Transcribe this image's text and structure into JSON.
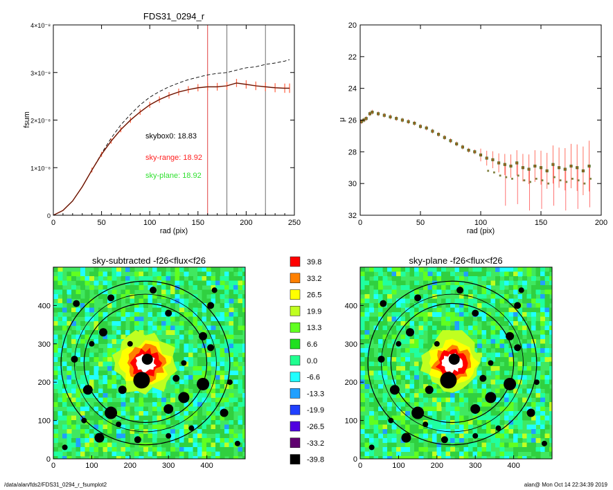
{
  "footer": {
    "path": "/data/alan/fds2/FDS31_0294_r_fsumplot2",
    "stamp": "alan@  Mon Oct 14 22:34:39 2019"
  },
  "colors": {
    "data_line": "#000000",
    "sky_range": "#ff0000",
    "sky_plane": "#00dd00",
    "error_bars": "#ff6040"
  },
  "chart_data": [
    {
      "type": "line",
      "title": "FDS31_0294_r",
      "xlabel": "rad (pix)",
      "ylabel": "fsum",
      "xlim": [
        0,
        250
      ],
      "ylim": [
        0,
        4e-08
      ],
      "xticks": [
        "0",
        "50",
        "100",
        "150",
        "200",
        "250"
      ],
      "yticks": [
        "0",
        "1×10⁻⁸",
        "2×10⁻⁸",
        "3×10⁻⁸",
        "4×10⁻⁸"
      ],
      "vlines": [
        {
          "x": 160,
          "color": "#e04040"
        },
        {
          "x": 180,
          "color": "#707070"
        },
        {
          "x": 220,
          "color": "#707070"
        }
      ],
      "annotations": [
        {
          "text": "skybox0: 18.83",
          "color": "#000000"
        },
        {
          "text": "sky-range: 18.92",
          "color": "#ff2020"
        },
        {
          "text": "sky-plane: 18.92",
          "color": "#30e030"
        }
      ],
      "series": [
        {
          "style": "dashed",
          "color": "#000000",
          "x": [
            0,
            10,
            20,
            30,
            40,
            50,
            60,
            70,
            80,
            90,
            100,
            110,
            120,
            130,
            140,
            150,
            160,
            170,
            180,
            190,
            200,
            210,
            220,
            230,
            240,
            245
          ],
          "y": [
            0,
            1e-09,
            3e-09,
            6e-09,
            9.5e-09,
            1.3e-08,
            1.62e-08,
            1.9e-08,
            2.12e-08,
            2.32e-08,
            2.48e-08,
            2.6e-08,
            2.7e-08,
            2.78e-08,
            2.85e-08,
            2.9e-08,
            2.95e-08,
            2.98e-08,
            3e-08,
            3.05e-08,
            3.1e-08,
            3.12e-08,
            3.17e-08,
            3.2e-08,
            3.24e-08,
            3.27e-08
          ]
        },
        {
          "style": "solid-errorbars",
          "color": "#000000",
          "x": [
            0,
            10,
            20,
            30,
            40,
            50,
            60,
            70,
            80,
            90,
            100,
            110,
            120,
            130,
            140,
            150,
            160,
            170,
            180,
            190,
            200,
            210,
            220,
            230,
            240,
            245
          ],
          "y": [
            0,
            1e-09,
            3e-09,
            6e-09,
            9.5e-09,
            1.28e-08,
            1.56e-08,
            1.8e-08,
            2e-08,
            2.17e-08,
            2.32e-08,
            2.43e-08,
            2.52e-08,
            2.59e-08,
            2.64e-08,
            2.68e-08,
            2.7e-08,
            2.7e-08,
            2.72e-08,
            2.78e-08,
            2.75e-08,
            2.72e-08,
            2.7e-08,
            2.68e-08,
            2.67e-08,
            2.67e-08
          ]
        }
      ]
    },
    {
      "type": "scatter",
      "xlabel": "rad (pix)",
      "ylabel": "μ",
      "xlim": [
        0,
        200
      ],
      "ylim": [
        32,
        20
      ],
      "xticks": [
        "0",
        "50",
        "100",
        "150",
        "200"
      ],
      "yticks": [
        "20",
        "22",
        "24",
        "26",
        "28",
        "30",
        "32"
      ],
      "series": [
        {
          "style": "points-errorbars",
          "x": [
            1,
            3,
            5,
            8,
            10,
            15,
            20,
            25,
            30,
            35,
            40,
            45,
            50,
            55,
            60,
            65,
            70,
            75,
            80,
            85,
            90,
            95,
            100,
            105,
            110,
            115,
            120,
            125,
            130,
            135,
            140,
            145,
            150,
            155,
            160,
            165,
            170,
            175,
            180,
            185,
            190
          ],
          "y": [
            26.1,
            26.0,
            25.9,
            25.6,
            25.5,
            25.6,
            25.7,
            25.8,
            25.9,
            26.0,
            26.1,
            26.2,
            26.4,
            26.5,
            26.7,
            26.9,
            27.1,
            27.3,
            27.5,
            27.7,
            27.9,
            28.0,
            28.2,
            28.4,
            28.5,
            28.7,
            28.8,
            28.9,
            28.7,
            29.0,
            29.1,
            28.9,
            29.0,
            29.2,
            28.8,
            29.0,
            29.1,
            28.9,
            29.0,
            29.2,
            28.9
          ]
        }
      ]
    },
    {
      "type": "heatmap",
      "title": "sky-subtracted -f26<flux<f26",
      "xlim": [
        0,
        500
      ],
      "ylim": [
        0,
        500
      ],
      "xticks": [
        "0",
        "100",
        "200",
        "300",
        "400"
      ],
      "yticks": [
        "0",
        "100",
        "200",
        "300",
        "400"
      ],
      "center": [
        240,
        250
      ],
      "circle_radii": [
        160,
        185,
        220
      ]
    },
    {
      "type": "heatmap",
      "title": "sky-plane -f26<flux<f26",
      "xlim": [
        0,
        500
      ],
      "ylim": [
        0,
        500
      ],
      "xticks": [
        "0",
        "100",
        "200",
        "300",
        "400"
      ],
      "yticks": [
        "0",
        "100",
        "200",
        "300",
        "400"
      ],
      "center": [
        240,
        250
      ],
      "circle_radii": [
        160,
        185,
        220
      ]
    }
  ],
  "colorbar": {
    "labels": [
      "39.8",
      "33.2",
      "26.5",
      "19.9",
      "13.3",
      "6.6",
      "0.0",
      "-6.6",
      "-13.3",
      "-19.9",
      "-26.5",
      "-33.2",
      "-39.8"
    ],
    "colors": [
      "#ff0000",
      "#ff8000",
      "#ffff00",
      "#c0ff20",
      "#60ff20",
      "#20e020",
      "#20ff90",
      "#20ffff",
      "#20a0ff",
      "#2040ff",
      "#5000e0",
      "#600070",
      "#000000"
    ]
  }
}
